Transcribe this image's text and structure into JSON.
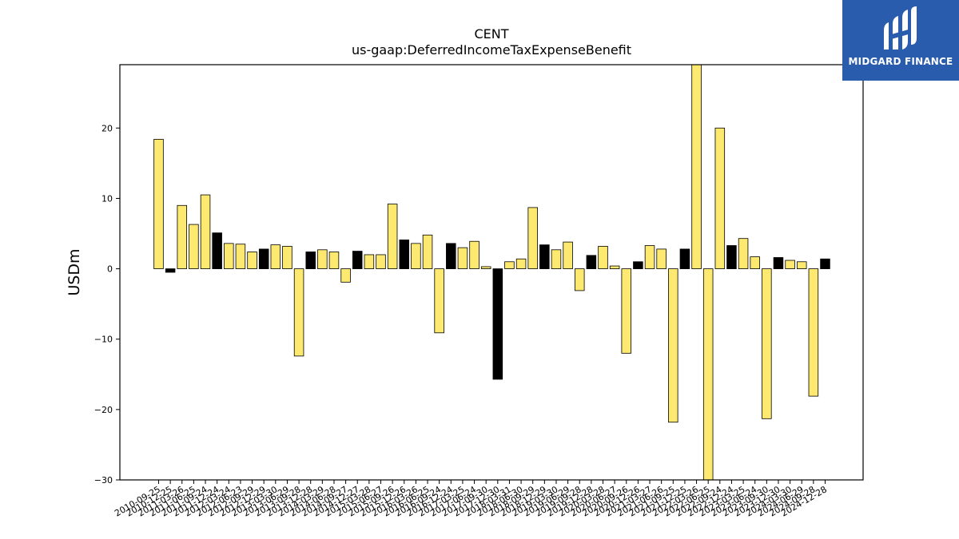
{
  "chart_data": {
    "type": "bar",
    "title": "CENT",
    "subtitle": "us-gaap:DeferredIncomeTaxExpenseBenefit",
    "xlabel": "",
    "ylabel": "USDm",
    "ylim": [
      -30,
      29
    ],
    "yticks": [
      -30,
      -20,
      -10,
      0,
      10,
      20
    ],
    "colors": {
      "yellow": "#fde96f",
      "black": "#000000",
      "edge": "#000000"
    },
    "categories": [
      "2010-09-25",
      "2010-12-25",
      "2011-03-26",
      "2011-06-25",
      "2011-09-24",
      "2011-12-24",
      "2012-03-24",
      "2012-06-23",
      "2012-09-29",
      "2012-12-29",
      "2013-03-30",
      "2013-06-29",
      "2013-09-28",
      "2013-12-28",
      "2014-03-29",
      "2014-06-28",
      "2014-09-27",
      "2014-12-27",
      "2015-03-28",
      "2015-06-27",
      "2015-09-26",
      "2015-12-26",
      "2016-03-26",
      "2016-06-25",
      "2016-09-24",
      "2016-12-24",
      "2017-03-25",
      "2017-06-24",
      "2017-09-30",
      "2017-12-30",
      "2018-03-31",
      "2018-06-30",
      "2018-09-29",
      "2018-12-29",
      "2019-03-30",
      "2019-06-29",
      "2019-09-28",
      "2019-12-28",
      "2020-03-28",
      "2020-06-27",
      "2020-09-26",
      "2020-12-26",
      "2021-03-27",
      "2021-06-26",
      "2021-09-25",
      "2021-12-25",
      "2022-03-26",
      "2022-06-25",
      "2022-09-24",
      "2022-12-24",
      "2023-03-25",
      "2023-06-24",
      "2023-09-30",
      "2023-12-30",
      "2024-03-30",
      "2024-06-29",
      "2024-09-28",
      "2024-12-28"
    ],
    "tick_labels": [
      "2010-09-25",
      "2010-12-25",
      "2011-03-26",
      "2011-06-25",
      "2011-09-24",
      "2011-12-24",
      "2012-03-24",
      "2012-06-23",
      "2012-09-29",
      "2012-12-29",
      "2013-03-30",
      "2013-06-29",
      "2013-09-28",
      "2013-12-28",
      "2014-03-29",
      "2014-06-28",
      "2014-09-27",
      "2014-12-27",
      "2015-03-28",
      "2015-06-27",
      "2015-09-26",
      "2015-12-26",
      "2016-03-26",
      "2016-06-25",
      "2016-09-24",
      "2016-12-24",
      "2017-03-25",
      "2017-06-24",
      "2017-09-30",
      "2017-12-30",
      "2018-03-31",
      "2018-06-30",
      "2018-09-29",
      "2018-12-29",
      "2019-03-30",
      "2019-06-29",
      "2019-09-28",
      "2019-12-28",
      "2020-03-28",
      "2020-06-27",
      "2020-09-26",
      "2020-12-26",
      "2021-03-27",
      "2021-06-26",
      "2021-09-25",
      "2021-12-25",
      "2022-03-26",
      "2022-06-25",
      "2022-09-24",
      "2022-12-24",
      "2023-03-25",
      "2023-06-24",
      "2023-09-30",
      "2023-12-30",
      "2024-03-30",
      "2024-06-29",
      "2024-09-28",
      "2024-12-28"
    ],
    "values": [
      18.4,
      -0.5,
      9.0,
      6.3,
      10.5,
      5.1,
      3.6,
      3.5,
      2.4,
      2.8,
      3.4,
      3.2,
      -12.4,
      2.4,
      2.7,
      2.4,
      -1.9,
      2.5,
      2.0,
      2.0,
      9.2,
      4.1,
      3.6,
      4.8,
      -9.1,
      3.6,
      3.0,
      3.9,
      0.3,
      -15.7,
      1.0,
      1.4,
      8.7,
      3.4,
      2.7,
      3.8,
      -3.1,
      1.9,
      3.2,
      0.4,
      -12.0,
      1.0,
      3.3,
      2.8,
      -21.8,
      2.8,
      29.0,
      -30.0,
      20.0,
      3.3,
      4.3,
      1.7,
      -21.3,
      1.6,
      1.2,
      1.0,
      -18.1,
      1.4
    ],
    "bar_colors": [
      "yellow",
      "black",
      "yellow",
      "yellow",
      "yellow",
      "black",
      "yellow",
      "yellow",
      "yellow",
      "black",
      "yellow",
      "yellow",
      "yellow",
      "black",
      "yellow",
      "yellow",
      "yellow",
      "black",
      "yellow",
      "yellow",
      "yellow",
      "black",
      "yellow",
      "yellow",
      "yellow",
      "black",
      "yellow",
      "yellow",
      "yellow",
      "black",
      "yellow",
      "yellow",
      "yellow",
      "black",
      "yellow",
      "yellow",
      "yellow",
      "black",
      "yellow",
      "yellow",
      "yellow",
      "black",
      "yellow",
      "yellow",
      "yellow",
      "black",
      "yellow",
      "yellow",
      "yellow",
      "black",
      "yellow",
      "yellow",
      "yellow",
      "black",
      "yellow",
      "yellow",
      "yellow",
      "black"
    ]
  },
  "logo": {
    "text": "MIDGARD FINANCE",
    "background": "#2a5cad"
  }
}
